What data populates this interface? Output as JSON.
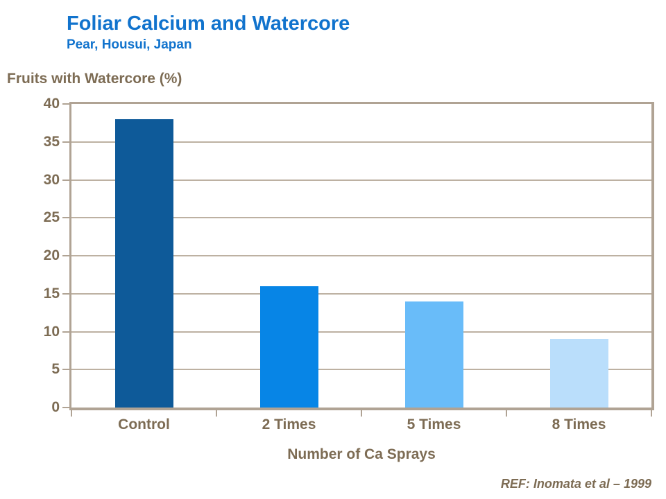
{
  "chart_data": {
    "type": "bar",
    "title": "Foliar Calcium and Watercore",
    "subtitle": "Pear, Housui, Japan",
    "axis_caption": "Fruits with Watercore (%)",
    "xlabel": "Number of Ca Sprays",
    "categories": [
      "Control",
      "2 Times",
      "5 Times",
      "8 Times"
    ],
    "values": [
      38,
      16,
      14,
      9
    ],
    "bar_colors": [
      "#0e5a99",
      "#0785e6",
      "#69bcf9",
      "#badefb"
    ],
    "ylim": [
      0,
      40
    ],
    "ytick_step": 5,
    "ytick_labels": [
      "0",
      "5",
      "10",
      "15",
      "20",
      "25",
      "30",
      "35",
      "40"
    ],
    "grid": true,
    "legend": "none",
    "reference": "REF: Inomata et al – 1999",
    "colors": {
      "title_blue": "#1173cd",
      "axis_text_brown": "#7d6c54",
      "axis_line": "#b0a394",
      "gridline": "#bdb1a2",
      "background": "#ffffff"
    }
  }
}
